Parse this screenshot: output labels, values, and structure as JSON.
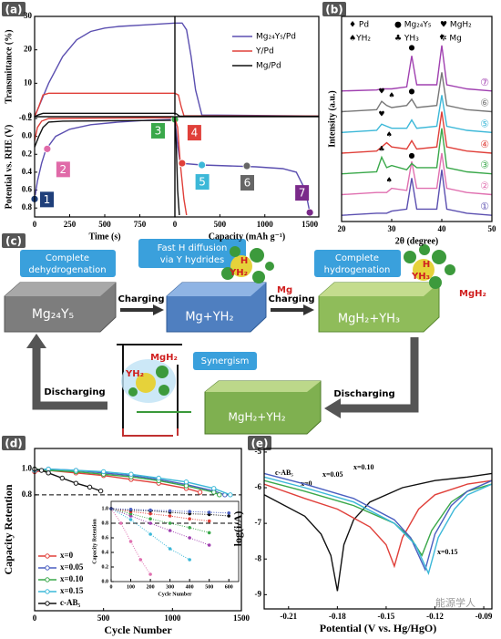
{
  "chart_data": [
    {
      "label": "(a)",
      "type": "line",
      "ylabel": "Transmittance (%)",
      "xlim": [
        0,
        1000
      ],
      "ylim": [
        0,
        30
      ],
      "yticks": [
        0,
        10,
        20,
        30
      ],
      "series": [
        {
          "color": "#5b4fb0",
          "x": [
            0,
            20,
            100,
            200,
            300,
            400,
            500,
            600,
            800,
            1000
          ],
          "values": [
            0,
            2,
            10,
            18,
            23,
            25.5,
            26.5,
            27,
            27.5,
            28
          ]
        },
        {
          "color": "#e0403a",
          "x": [
            0,
            30,
            60,
            100,
            1000
          ],
          "values": [
            0,
            3,
            6.5,
            7,
            7
          ]
        },
        {
          "color": "#111111",
          "x": [
            0,
            30,
            60,
            1000
          ],
          "values": [
            0,
            0.6,
            1,
            1
          ]
        }
      ]
    },
    {
      "type": "line",
      "xlim": [
        0,
        1600
      ],
      "ylim": [
        0,
        30
      ],
      "legend": "upper right",
      "series": [
        {
          "name": "Mg₂₄Y₅/Pd",
          "color": "#5b4fb0",
          "x": [
            0,
            80,
            130,
            180,
            230,
            300,
            1600
          ],
          "values": [
            28,
            28,
            26,
            18,
            8,
            0.5,
            0.2
          ]
        },
        {
          "name": "Y/Pd",
          "color": "#e0403a",
          "x": [
            0,
            40,
            70,
            100,
            1600
          ],
          "values": [
            7,
            6.5,
            3,
            0.3,
            0.2
          ]
        },
        {
          "name": "Mg/Pd",
          "color": "#111111",
          "x": [
            0,
            20,
            50,
            1600
          ],
          "values": [
            1,
            0.8,
            0.2,
            0.1
          ]
        }
      ]
    },
    {
      "type": "line",
      "ylabel": "Potential vs. RHE (V)",
      "xlabel": "Time (s)",
      "xlim": [
        0,
        1000
      ],
      "ylim": [
        0.9,
        -0.22
      ],
      "xticks": [
        0,
        250,
        500,
        750
      ],
      "yticks": [
        0.8,
        0.6,
        0.4,
        0.2,
        {
          "value": 0,
          "label": "0.0"
        },
        -0.2
      ],
      "series": [
        {
          "color": "#5b4fb0",
          "x": [
            0,
            20,
            50,
            80,
            150,
            250,
            400,
            600,
            800,
            1000
          ],
          "values": [
            0.7,
            0.5,
            0.3,
            0.15,
            0.0,
            -0.08,
            -0.13,
            -0.16,
            -0.18,
            -0.19
          ]
        },
        {
          "color": "#e0403a",
          "x": [
            0,
            20,
            50,
            100,
            1000
          ],
          "values": [
            0.05,
            -0.1,
            -0.17,
            -0.2,
            -0.21
          ]
        },
        {
          "color": "#111111",
          "x": [
            0,
            30,
            60,
            100,
            200,
            1000
          ],
          "values": [
            0.12,
            0.0,
            -0.1,
            -0.16,
            -0.17,
            -0.18
          ]
        }
      ],
      "annotations": [
        {
          "text": "1",
          "x": 0,
          "y": 0.7,
          "color": "#1f3f7a"
        },
        {
          "text": "2",
          "x": 90,
          "y": 0.14,
          "color": "#e06aa8"
        },
        {
          "text": "3",
          "x": 1000,
          "y": -0.19,
          "color": "#3aa84a"
        }
      ]
    },
    {
      "type": "line",
      "xlabel": "Capacity (mAh g⁻¹)",
      "xlim": [
        0,
        1600
      ],
      "ylim": [
        0.9,
        -0.22
      ],
      "xticks": [
        0,
        500,
        1000,
        1500
      ],
      "series": [
        {
          "color": "#5b4fb0",
          "x": [
            0,
            30,
            60,
            300,
            600,
            900,
            1200,
            1350,
            1450,
            1500
          ],
          "values": [
            -0.2,
            0.1,
            0.3,
            0.32,
            0.33,
            0.34,
            0.36,
            0.4,
            0.6,
            0.85
          ]
        },
        {
          "color": "#e0403a",
          "x": [
            0,
            30,
            60,
            100,
            130
          ],
          "values": [
            -0.2,
            -0.1,
            0.3,
            0.7,
            0.88
          ]
        },
        {
          "color": "#111111",
          "x": [
            0,
            15,
            30,
            50
          ],
          "values": [
            -0.2,
            0.1,
            0.6,
            0.88
          ]
        }
      ],
      "annotations": [
        {
          "text": "4",
          "x": 80,
          "y": 0.3,
          "color": "#e0403a"
        },
        {
          "text": "5",
          "x": 300,
          "y": 0.32,
          "color": "#3cb8d8"
        },
        {
          "text": "6",
          "x": 800,
          "y": 0.33,
          "color": "#666666"
        },
        {
          "text": "7",
          "x": 1500,
          "y": 0.85,
          "color": "#7a2a8a"
        }
      ]
    },
    {
      "label": "(b)",
      "type": "line",
      "xlabel": "2θ (degree)",
      "ylabel": "Intensity (a.u.)",
      "xlim": [
        20,
        50
      ],
      "ylim": [
        -0.3,
        9.6
      ],
      "xticks": [
        20,
        30,
        40,
        50
      ],
      "legend": "inline",
      "symbols": [
        "♦ Pd",
        "● Mg₂₄Y₅",
        "♥ MgH₂",
        "♠YH₂",
        "♣ YH₃",
        "✲ Mg"
      ],
      "x": [
        20,
        27,
        28,
        29,
        30,
        33,
        34,
        35,
        39,
        40,
        41,
        45,
        50
      ],
      "series": [
        {
          "name": "①",
          "color": "#5b4fb0",
          "values": [
            0,
            0.1,
            0.1,
            0.1,
            0.2,
            0.3,
            1.8,
            0.3,
            0.3,
            2.2,
            0.3,
            0.1,
            0
          ]
        },
        {
          "name": "②",
          "color": "#e070b0",
          "values": [
            1,
            1.1,
            1.1,
            1.1,
            1.3,
            1.2,
            2.6,
            1.3,
            1.3,
            3.0,
            1.3,
            1.1,
            1
          ]
        },
        {
          "name": "③",
          "color": "#3aa84a",
          "values": [
            2,
            2.1,
            2.8,
            2.3,
            2.4,
            2.2,
            2.5,
            2.3,
            2.3,
            4.2,
            2.3,
            2.1,
            2
          ]
        },
        {
          "name": "④",
          "color": "#e0403a",
          "values": [
            3,
            3.1,
            3.3,
            3.5,
            3.3,
            3.2,
            3.6,
            3.2,
            3.3,
            5.0,
            3.3,
            3.1,
            3
          ]
        },
        {
          "name": "⑤",
          "color": "#3cb8d8",
          "values": [
            4,
            4.1,
            4.4,
            4.3,
            4.2,
            4.2,
            4.6,
            4.2,
            4.3,
            5.8,
            4.3,
            4.1,
            4
          ]
        },
        {
          "name": "⑥",
          "color": "#777777",
          "values": [
            5,
            5.1,
            5.5,
            5.3,
            5.2,
            5.3,
            5.6,
            5.2,
            5.3,
            6.9,
            5.3,
            5.1,
            5
          ]
        },
        {
          "name": "⑦",
          "color": "#a040b0",
          "values": [
            6,
            6.05,
            6.1,
            6.1,
            6.1,
            6.2,
            7.7,
            6.3,
            6.3,
            8.2,
            6.3,
            6.1,
            6
          ]
        }
      ],
      "annotations": [
        {
          "text": "●",
          "x": 34,
          "y": 8.1
        },
        {
          "text": "♦",
          "x": 40,
          "y": 8.6
        },
        {
          "text": "♥",
          "x": 28,
          "y": 6.0
        },
        {
          "text": "♠",
          "x": 30,
          "y": 5.8
        },
        {
          "text": "●",
          "x": 34,
          "y": 6.0
        },
        {
          "text": "♥",
          "x": 28,
          "y": 4.9
        },
        {
          "text": "♠",
          "x": 29.5,
          "y": 3.9
        },
        {
          "text": "♣",
          "x": 28,
          "y": 3.2
        },
        {
          "text": "♠",
          "x": 29.5,
          "y": 1.7
        },
        {
          "text": "●",
          "x": 34,
          "y": 2.9
        }
      ]
    },
    {
      "label": "(d)",
      "type": "line",
      "xlabel": "Cycle Number",
      "ylabel": "Capacity Retention",
      "xlim": [
        0,
        1500
      ],
      "ylim": [
        -0.1,
        1.16
      ],
      "xticks": [
        0,
        500,
        1000,
        1500
      ],
      "yticks": [
        0.8,
        {
          "value": 1,
          "label": "1.0"
        }
      ],
      "reference_line": 0.8,
      "legend": "lower left",
      "markers": true,
      "series": [
        {
          "name": "x=0",
          "color": "#e0403a",
          "x": [
            0,
            100,
            300,
            500,
            700,
            900,
            1100,
            1200
          ],
          "values": [
            0.98,
            0.99,
            0.97,
            0.95,
            0.92,
            0.89,
            0.85,
            0.82
          ]
        },
        {
          "name": "x=0.05",
          "color": "#4a5fc0",
          "x": [
            0,
            100,
            300,
            500,
            700,
            900,
            1100,
            1300,
            1380
          ],
          "values": [
            0.99,
            1.0,
            0.99,
            0.97,
            0.95,
            0.92,
            0.88,
            0.83,
            0.8
          ]
        },
        {
          "name": "x=0.10",
          "color": "#3aa84a",
          "x": [
            0,
            100,
            300,
            500,
            700,
            900,
            1100,
            1300,
            1340
          ],
          "values": [
            1.0,
            0.99,
            0.98,
            0.96,
            0.94,
            0.91,
            0.87,
            0.82,
            0.8
          ]
        },
        {
          "name": "x=0.15",
          "color": "#3cb8d8",
          "x": [
            0,
            100,
            300,
            500,
            700,
            900,
            1100,
            1300,
            1420
          ],
          "values": [
            0.99,
            1.0,
            0.99,
            0.98,
            0.96,
            0.93,
            0.9,
            0.85,
            0.8
          ]
        },
        {
          "name": "c-AB₅",
          "color": "#111111",
          "x": [
            0,
            50,
            100,
            200,
            300,
            400,
            480
          ],
          "values": [
            1.0,
            0.99,
            0.97,
            0.93,
            0.89,
            0.86,
            0.83
          ]
        }
      ]
    },
    {
      "type": "line",
      "xlabel": "Cycle Number",
      "ylabel": "Capacity Retention",
      "xlim": [
        0,
        650
      ],
      "ylim": [
        0,
        1.1
      ],
      "xticks": [
        0,
        100,
        200,
        300,
        400,
        500,
        600
      ],
      "yticks": [
        {
          "value": 0,
          "label": "0.0"
        },
        0.2,
        0.4,
        0.6,
        0.8,
        {
          "value": 1,
          "label": "1.0"
        }
      ],
      "reference_line": 0.8,
      "markers": true,
      "linestyle": "dotted",
      "series": [
        {
          "color": "#e070b0",
          "x": [
            0,
            50,
            100,
            150,
            200
          ],
          "values": [
            1,
            0.8,
            0.55,
            0.3,
            0.1
          ]
        },
        {
          "color": "#3cb8d8",
          "x": [
            0,
            100,
            200,
            300,
            400
          ],
          "values": [
            1,
            0.85,
            0.65,
            0.45,
            0.3
          ]
        },
        {
          "color": "#a040b0",
          "x": [
            0,
            100,
            200,
            300,
            400,
            500
          ],
          "values": [
            1,
            0.9,
            0.8,
            0.7,
            0.6,
            0.5
          ]
        },
        {
          "color": "#3aa84a",
          "x": [
            0,
            100,
            200,
            300,
            400,
            500
          ],
          "values": [
            1,
            0.93,
            0.86,
            0.8,
            0.74,
            0.67
          ]
        },
        {
          "color": "#e0403a",
          "x": [
            0,
            100,
            200,
            300,
            400,
            500
          ],
          "values": [
            1,
            0.96,
            0.93,
            0.9,
            0.86,
            0.83
          ]
        },
        {
          "color": "#111111",
          "x": [
            0,
            100,
            200,
            300,
            400,
            500,
            600
          ],
          "values": [
            1,
            0.98,
            0.97,
            0.95,
            0.93,
            0.92,
            0.9
          ]
        },
        {
          "color": "#4a5fc0",
          "x": [
            0,
            100,
            200,
            300,
            400,
            500,
            600
          ],
          "values": [
            1,
            0.99,
            0.98,
            0.97,
            0.96,
            0.95,
            0.94
          ]
        }
      ]
    },
    {
      "label": "(e)",
      "type": "line",
      "xlabel": "Potential (V vs. Hg/HgO)",
      "ylabel": "log(i/A)",
      "xlim": [
        -0.225,
        -0.085
      ],
      "ylim": [
        -9.4,
        -4.9
      ],
      "xticks": [
        -0.21,
        -0.18,
        -0.15,
        -0.12,
        -0.09
      ],
      "yticks": [
        -9,
        -8,
        -7,
        -6,
        -5
      ],
      "legend": "inline",
      "series": [
        {
          "name": "c-AB₅",
          "color": "#111111",
          "x": [
            -0.225,
            -0.2,
            -0.19,
            -0.184,
            -0.18,
            -0.176,
            -0.17,
            -0.16,
            -0.14,
            -0.12,
            -0.1,
            -0.085
          ],
          "values": [
            -6.2,
            -6.8,
            -7.3,
            -7.9,
            -8.9,
            -7.6,
            -6.9,
            -6.4,
            -6.0,
            -5.8,
            -5.7,
            -5.6
          ]
        },
        {
          "name": "x=0",
          "color": "#e0403a",
          "x": [
            -0.225,
            -0.2,
            -0.18,
            -0.16,
            -0.15,
            -0.145,
            -0.14,
            -0.13,
            -0.12,
            -0.1,
            -0.085
          ],
          "values": [
            -5.9,
            -6.3,
            -6.6,
            -7.1,
            -7.6,
            -8.2,
            -7.4,
            -6.6,
            -6.2,
            -5.9,
            -5.8
          ]
        },
        {
          "name": "x=0.05",
          "color": "#3aa84a",
          "x": [
            -0.225,
            -0.2,
            -0.17,
            -0.145,
            -0.135,
            -0.128,
            -0.122,
            -0.11,
            -0.1,
            -0.085
          ],
          "values": [
            -5.8,
            -6.1,
            -6.5,
            -7.0,
            -7.4,
            -7.9,
            -7.2,
            -6.4,
            -6.1,
            -5.9
          ]
        },
        {
          "name": "x=0.10",
          "color": "#4a5fc0",
          "x": [
            -0.225,
            -0.2,
            -0.17,
            -0.145,
            -0.135,
            -0.126,
            -0.12,
            -0.11,
            -0.1,
            -0.085
          ],
          "values": [
            -5.6,
            -5.9,
            -6.3,
            -6.9,
            -7.4,
            -8.3,
            -7.3,
            -6.5,
            -6.1,
            -5.8
          ]
        },
        {
          "name": "x=0.15",
          "color": "#3cb8d8",
          "x": [
            -0.225,
            -0.2,
            -0.17,
            -0.145,
            -0.132,
            -0.124,
            -0.118,
            -0.108,
            -0.1,
            -0.085
          ],
          "values": [
            -5.7,
            -6.0,
            -6.4,
            -7.0,
            -7.6,
            -8.4,
            -7.4,
            -6.6,
            -6.2,
            -5.9
          ]
        }
      ]
    }
  ],
  "diagram": {
    "label": "(c)",
    "steps": [
      {
        "title": [
          "Complete",
          "dehydrogenation"
        ],
        "material": "Mg₂₄Y₅"
      },
      {
        "title": [
          "Fast H diffusion",
          "via Y hydrides"
        ],
        "material": "Mg+YH₂",
        "labels": [
          "H",
          "YH₂",
          "Mg"
        ]
      },
      {
        "title": [
          "Complete",
          "hydrogenation"
        ],
        "material": "MgH₂+YH₃",
        "labels": [
          "H",
          "YH₃",
          "MgH₂"
        ]
      }
    ],
    "charging": [
      "Charging",
      "Charging"
    ],
    "discharging": [
      "Discharging",
      "Discharging"
    ],
    "synergism": {
      "title": "Synergism",
      "material": "MgH₂+YH₂",
      "labels": [
        "MgH₂",
        "YH₂"
      ]
    }
  },
  "watermark": "能源学人"
}
